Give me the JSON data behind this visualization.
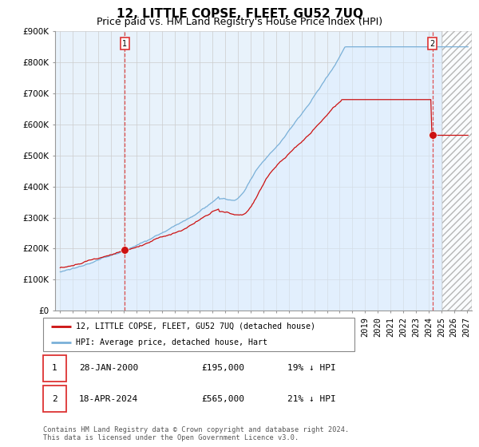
{
  "title": "12, LITTLE COPSE, FLEET, GU52 7UQ",
  "subtitle": "Price paid vs. HM Land Registry's House Price Index (HPI)",
  "ylabel_ticks": [
    "£0",
    "£100K",
    "£200K",
    "£300K",
    "£400K",
    "£500K",
    "£600K",
    "£700K",
    "£800K",
    "£900K"
  ],
  "ytick_values": [
    0,
    100000,
    200000,
    300000,
    400000,
    500000,
    600000,
    700000,
    800000,
    900000
  ],
  "ylim": [
    0,
    900000
  ],
  "xlim_start": 1994.6,
  "xlim_end": 2027.4,
  "hpi_color": "#7ab0d8",
  "hpi_fill_color": "#ddeeff",
  "price_color": "#cc1111",
  "marker1_x": 2000.08,
  "marker1_price": 195000,
  "marker2_x": 2024.29,
  "marker2_price": 565000,
  "vline_color": "#dd3333",
  "legend_line1": "12, LITTLE COPSE, FLEET, GU52 7UQ (detached house)",
  "legend_line2": "HPI: Average price, detached house, Hart",
  "annot1": [
    "1",
    "28-JAN-2000",
    "£195,000",
    "19% ↓ HPI"
  ],
  "annot2": [
    "2",
    "18-APR-2024",
    "£565,000",
    "21% ↓ HPI"
  ],
  "footer": "Contains HM Land Registry data © Crown copyright and database right 2024.\nThis data is licensed under the Open Government Licence v3.0.",
  "grid_color": "#cccccc",
  "hatch_start": 2025.08,
  "title_fontsize": 11,
  "subtitle_fontsize": 9,
  "axis_fontsize": 7.5
}
